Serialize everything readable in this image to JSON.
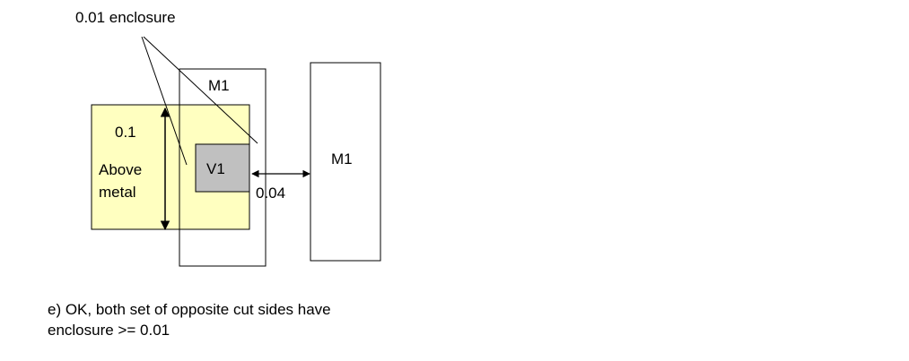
{
  "callout": {
    "enclosure_label": "0.01 enclosure"
  },
  "above_metal": {
    "value_label": "0.1",
    "name_line1": "Above",
    "name_line2": "metal",
    "fill_color": "#ffffc0"
  },
  "metal_left": {
    "label": "M1"
  },
  "via": {
    "label": "V1",
    "fill_color": "#c0c0c0"
  },
  "metal_right": {
    "label": "M1"
  },
  "spacing": {
    "label": "0.04"
  },
  "caption": {
    "line1": "e) OK, both set of opposite cut sides have",
    "line2": "enclosure >= 0.01"
  }
}
